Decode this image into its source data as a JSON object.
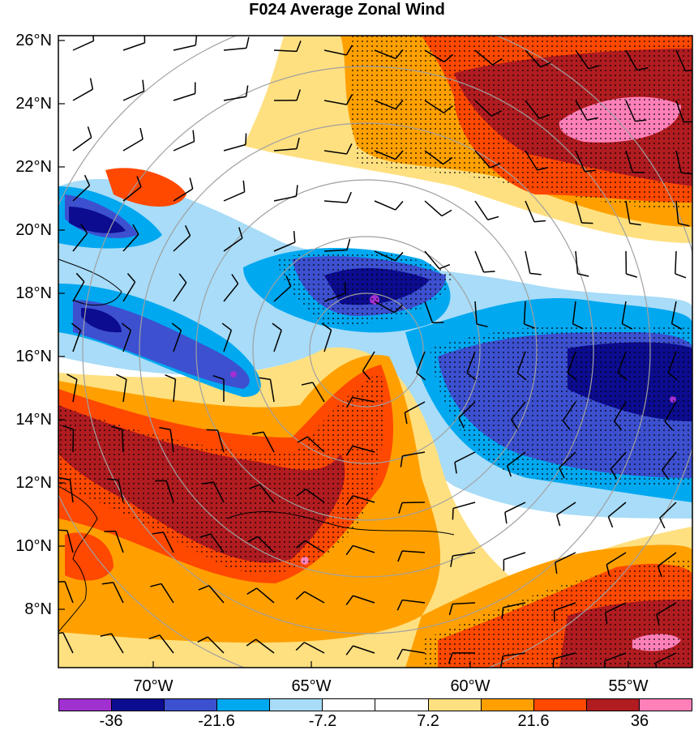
{
  "title": "F024 Average Zonal Wind",
  "latitude_labels": [
    "26°N",
    "24°N",
    "22°N",
    "20°N",
    "18°N",
    "16°N",
    "14°N",
    "12°N",
    "10°N",
    "8°N"
  ],
  "longitude_labels": [
    "70°W",
    "65°W",
    "60°W",
    "55°W"
  ],
  "colorbar": {
    "colors": [
      "#a030d0",
      "#0c0c90",
      "#3c50d0",
      "#00a8f0",
      "#a8dcf8",
      "#ffffff",
      "#ffffff",
      "#ffe080",
      "#ffa000",
      "#ff4800",
      "#b01c20",
      "#ff80b8"
    ],
    "labels": [
      "-36",
      "-21.6",
      "-7.2",
      "7.2",
      "21.6",
      "36"
    ]
  },
  "map": {
    "lon_range": [
      -73,
      -53
    ],
    "lat_range": [
      6.5,
      26
    ],
    "storm_center": {
      "lon": -62.3,
      "lat": 16.0
    },
    "range_ring_color": "#a0a0a0",
    "barb_color": "#000000"
  }
}
